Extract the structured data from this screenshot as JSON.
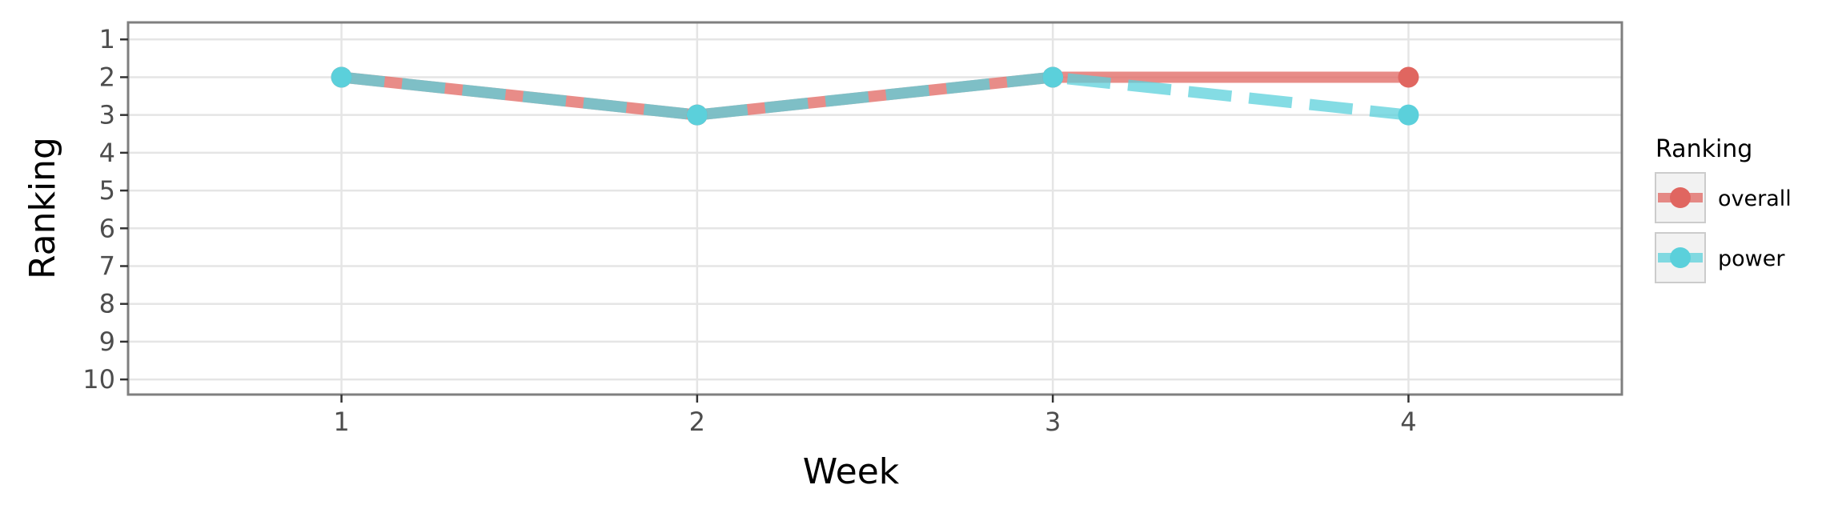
{
  "chart_data": {
    "type": "line",
    "xlabel": "Week",
    "ylabel": "Ranking",
    "x": [
      1,
      2,
      3,
      4
    ],
    "x_ticks": [
      "1",
      "2",
      "3",
      "4"
    ],
    "y_ticks": [
      "1",
      "2",
      "3",
      "4",
      "5",
      "6",
      "7",
      "8",
      "9",
      "10"
    ],
    "xlim": [
      0.4,
      4.6
    ],
    "ylim": [
      10.4,
      0.55
    ],
    "y_reversed": true,
    "grid": true,
    "legend": {
      "title": "Ranking",
      "placement": "right"
    },
    "series": [
      {
        "name": "overall",
        "values": [
          2,
          3,
          2,
          2
        ],
        "color": "#e06660",
        "line_style": "solid"
      },
      {
        "name": "power",
        "values": [
          2,
          3,
          2,
          3
        ],
        "color": "#5bd0db",
        "line_style": "dashed"
      }
    ]
  }
}
